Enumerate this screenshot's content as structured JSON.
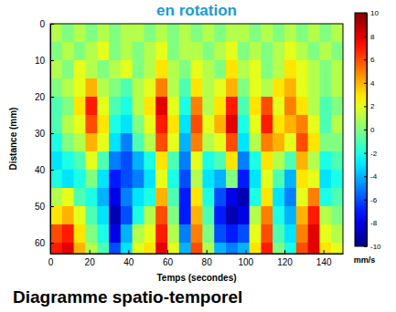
{
  "chart_data": {
    "type": "heatmap",
    "title": "en rotation",
    "subtitle": "Diagramme spatio-temporel",
    "x_label": "Temps (secondes)",
    "y_label": "Distance (mm)",
    "xlim": [
      0,
      150
    ],
    "xticks": [
      0,
      20,
      40,
      60,
      80,
      100,
      120,
      140
    ],
    "ylim": [
      0,
      63
    ],
    "yticks": [
      0,
      10,
      20,
      30,
      40,
      50,
      60
    ],
    "x_bins": [
      0,
      6,
      12,
      18,
      24,
      30,
      36,
      42,
      48,
      54,
      60,
      66,
      72,
      78,
      84,
      90,
      96,
      102,
      108,
      114,
      120,
      126,
      132,
      138,
      144,
      150
    ],
    "y_bins": [
      0,
      5,
      10,
      15,
      20,
      25,
      30,
      35,
      40,
      45,
      50,
      55,
      60,
      65
    ],
    "cells": [
      [
        1,
        0,
        1,
        0,
        1,
        0,
        1,
        1,
        0,
        1,
        0,
        1,
        0,
        1,
        0,
        1,
        1,
        0,
        1,
        0,
        1,
        0,
        1,
        0,
        1
      ],
      [
        0,
        1,
        0,
        1,
        2,
        0,
        1,
        0,
        1,
        2,
        0,
        1,
        1,
        0,
        1,
        2,
        0,
        1,
        0,
        1,
        2,
        1,
        0,
        1,
        0
      ],
      [
        1,
        0,
        2,
        1,
        0,
        1,
        2,
        0,
        1,
        3,
        1,
        0,
        2,
        1,
        0,
        3,
        1,
        2,
        0,
        1,
        3,
        2,
        1,
        0,
        1
      ],
      [
        0,
        1,
        2,
        4,
        1,
        0,
        -1,
        1,
        2,
        5,
        1,
        -1,
        3,
        1,
        2,
        4,
        0,
        2,
        1,
        3,
        4,
        2,
        1,
        0,
        1
      ],
      [
        -1,
        0,
        3,
        7,
        2,
        -1,
        -2,
        1,
        3,
        8,
        2,
        -2,
        5,
        1,
        3,
        7,
        -1,
        3,
        6,
        2,
        5,
        3,
        1,
        -1,
        0
      ],
      [
        -1,
        1,
        2,
        6,
        3,
        -2,
        -3,
        0,
        2,
        7,
        3,
        -3,
        6,
        2,
        4,
        8,
        -2,
        2,
        7,
        3,
        4,
        5,
        2,
        -1,
        1
      ],
      [
        -2,
        0,
        1,
        4,
        2,
        -3,
        -5,
        -1,
        1,
        6,
        2,
        -4,
        5,
        1,
        2,
        6,
        -3,
        1,
        5,
        4,
        2,
        6,
        3,
        0,
        0
      ],
      [
        -3,
        -2,
        -1,
        2,
        -1,
        -5,
        -6,
        -4,
        -2,
        3,
        -1,
        -5,
        2,
        -2,
        -1,
        3,
        -5,
        -2,
        3,
        1,
        -1,
        4,
        1,
        -2,
        -1
      ],
      [
        -2,
        -3,
        -2,
        0,
        -3,
        -7,
        -6,
        -5,
        -3,
        2,
        -2,
        -6,
        1,
        -3,
        -4,
        0,
        -7,
        -3,
        2,
        -1,
        -4,
        3,
        2,
        -3,
        -2
      ],
      [
        1,
        2,
        -1,
        -2,
        -4,
        -8,
        -5,
        -3,
        -2,
        4,
        -1,
        -7,
        3,
        -2,
        -6,
        -8,
        -9,
        -2,
        3,
        -3,
        -5,
        2,
        5,
        -2,
        -1
      ],
      [
        3,
        4,
        2,
        -1,
        -3,
        -9,
        -6,
        -2,
        1,
        6,
        0,
        -7,
        4,
        -1,
        -7,
        -9,
        -8,
        1,
        5,
        -2,
        -4,
        4,
        7,
        1,
        0
      ],
      [
        6,
        7,
        3,
        0,
        -2,
        -8,
        -4,
        1,
        2,
        7,
        1,
        -5,
        5,
        0,
        -6,
        -7,
        -6,
        2,
        6,
        -1,
        -3,
        5,
        8,
        2,
        1
      ],
      [
        7,
        8,
        4,
        1,
        -1,
        -6,
        -3,
        2,
        3,
        8,
        2,
        -4,
        6,
        1,
        -4,
        -5,
        -4,
        3,
        7,
        0,
        -2,
        6,
        8,
        3,
        2
      ]
    ],
    "colorbar": {
      "lim": [
        -10,
        10
      ],
      "ticks": [
        10,
        8,
        6,
        4,
        2,
        0,
        -2,
        -4,
        -6,
        -8,
        -10
      ],
      "label": "mm/s"
    }
  }
}
